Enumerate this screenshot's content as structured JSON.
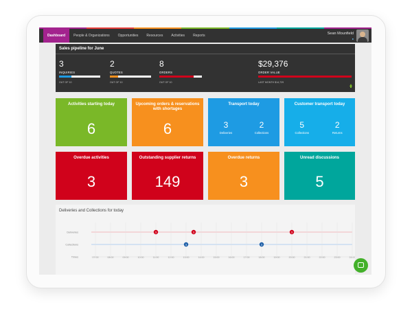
{
  "nav": {
    "colors": [
      "#a3238e",
      "#e83e3a",
      "#f7901e",
      "#7ab828",
      "#1e9be3",
      "#00a69c",
      "#a3238e"
    ],
    "items": [
      "Dashboard",
      "People & Organizations",
      "Opportunities",
      "Resources",
      "Activities",
      "Reports"
    ],
    "user_name": "Sean Mounfield",
    "user_location": "",
    "user_location_icon": "map-pin-icon",
    "avatar": "user-avatar"
  },
  "pipeline": {
    "title": "Sales pipeline for June",
    "metrics": [
      {
        "value": "3",
        "label": "INQUIRIES",
        "sub": "OUT OF 10",
        "fill_color": "#1e9be3",
        "progress": 0.3
      },
      {
        "value": "2",
        "label": "QUOTES",
        "sub": "OUT OF 10",
        "fill_color": "#f7901e",
        "progress": 0.2
      },
      {
        "value": "8",
        "label": "ORDERS",
        "sub": "OUT OF 10",
        "fill_color": "#d0021b",
        "progress": 0.8
      },
      {
        "value": "$29,376",
        "label": "ORDER VALUE",
        "sub": "LAST MONTH $14,729",
        "fill_color": "#d0021b",
        "progress": 1.0
      }
    ],
    "trend_icon": "up-arrow-icon"
  },
  "tiles": [
    {
      "title": "Activities starting today",
      "value": "6",
      "color": "#7ab828"
    },
    {
      "title": "Upcoming orders & reservations with shortages",
      "value": "6",
      "color": "#f7901e"
    },
    {
      "title": "Transport today",
      "color": "#1e9be3",
      "split": [
        {
          "value": "3",
          "label": "Deliveries"
        },
        {
          "value": "2",
          "label": "Collections"
        }
      ]
    },
    {
      "title": "Customer transport today",
      "color": "#16aee9",
      "split": [
        {
          "value": "5",
          "label": "Collections"
        },
        {
          "value": "2",
          "label": "Returns"
        }
      ]
    },
    {
      "title": "Overdue activities",
      "value": "3",
      "color": "#d0021b"
    },
    {
      "title": "Outstanding supplier returns",
      "value": "149",
      "color": "#d0021b"
    },
    {
      "title": "Overdue returns",
      "value": "3",
      "color": "#f7901e"
    },
    {
      "title": "Unread discussions",
      "value": "5",
      "color": "#00a69c"
    }
  ],
  "deliveries": {
    "title": "Deliveries and Collections for today",
    "rows": [
      "Deliveries",
      "Collections",
      "Times"
    ],
    "times": [
      "07:00",
      "08:00",
      "09:00",
      "10:00",
      "11:00",
      "12:00",
      "13:00",
      "14:00",
      "15:00",
      "16:00",
      "17:00",
      "18:00",
      "19:00",
      "20:00",
      "21:00",
      "22:00",
      "23:00",
      "24:00"
    ],
    "delivery_color": "#d0021b",
    "collection_color": "#1e5fa8",
    "delivery_markers": [
      {
        "time": "11:00",
        "label": "1"
      },
      {
        "time": "13:30",
        "label": "1"
      },
      {
        "time": "20:00",
        "label": "1"
      }
    ],
    "collection_markers": [
      {
        "time": "13:00",
        "label": "1"
      },
      {
        "time": "18:00",
        "label": "1"
      }
    ]
  },
  "chat_icon": "chat-bubble-icon"
}
